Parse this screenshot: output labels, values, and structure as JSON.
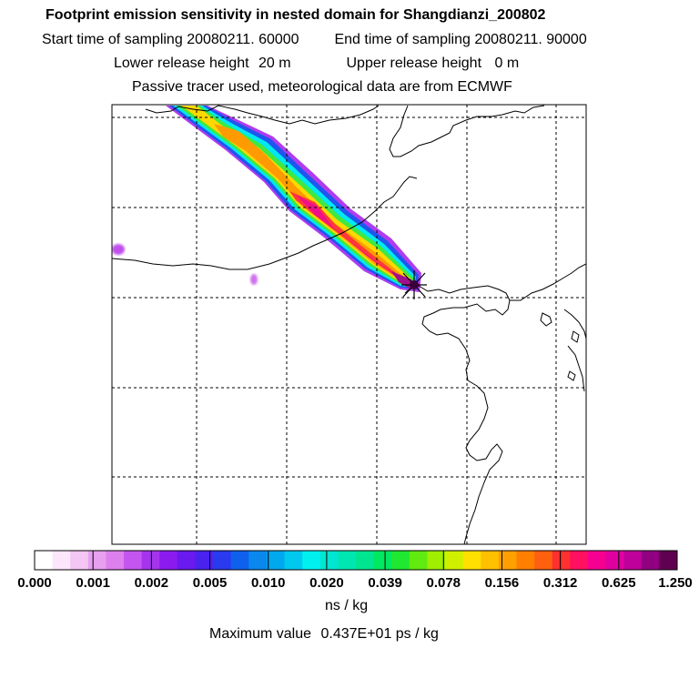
{
  "header": {
    "title": "Footprint emission sensitivity in nested domain for Shangdianzi_200802",
    "start_label": "Start time of sampling",
    "start_value": "20080211. 60000",
    "end_label": "End time of sampling",
    "end_value": "20080211. 90000",
    "lower_label": "Lower release height",
    "lower_value": "20 m",
    "upper_label": "Upper release height",
    "upper_value": "0 m",
    "tracer_info": "Passive tracer used, meteorological data are from ECMWF"
  },
  "legend": {
    "tick_labels": [
      "0.000",
      "0.001",
      "0.002",
      "0.005",
      "0.010",
      "0.020",
      "0.039",
      "0.078",
      "0.156",
      "0.312",
      "0.625",
      "1.250"
    ],
    "colors": [
      "#ffffff",
      "#fbe6fb",
      "#f3c6f3",
      "#e7a0ef",
      "#dd80ee",
      "#c455ee",
      "#a633ee",
      "#8a1bee",
      "#6a19ee",
      "#4a22ee",
      "#2a3aee",
      "#1060ee",
      "#0a88ee",
      "#00a8ee",
      "#00c8ee",
      "#00f0f0",
      "#00e6d2",
      "#00e6b0",
      "#00e690",
      "#00e860",
      "#20e830",
      "#60ea10",
      "#a0ee00",
      "#d0f000",
      "#ffe000",
      "#ffc000",
      "#ffa000",
      "#ff8000",
      "#ff6010",
      "#ff3030",
      "#ff1060",
      "#f50090",
      "#e000a0",
      "#c0009a",
      "#900080",
      "#600050"
    ],
    "units": "ns / kg",
    "max_label": "Maximum value",
    "max_value": "0.437E+01 ps / kg"
  },
  "map": {
    "receptor_marker": "receptor-star-icon"
  }
}
